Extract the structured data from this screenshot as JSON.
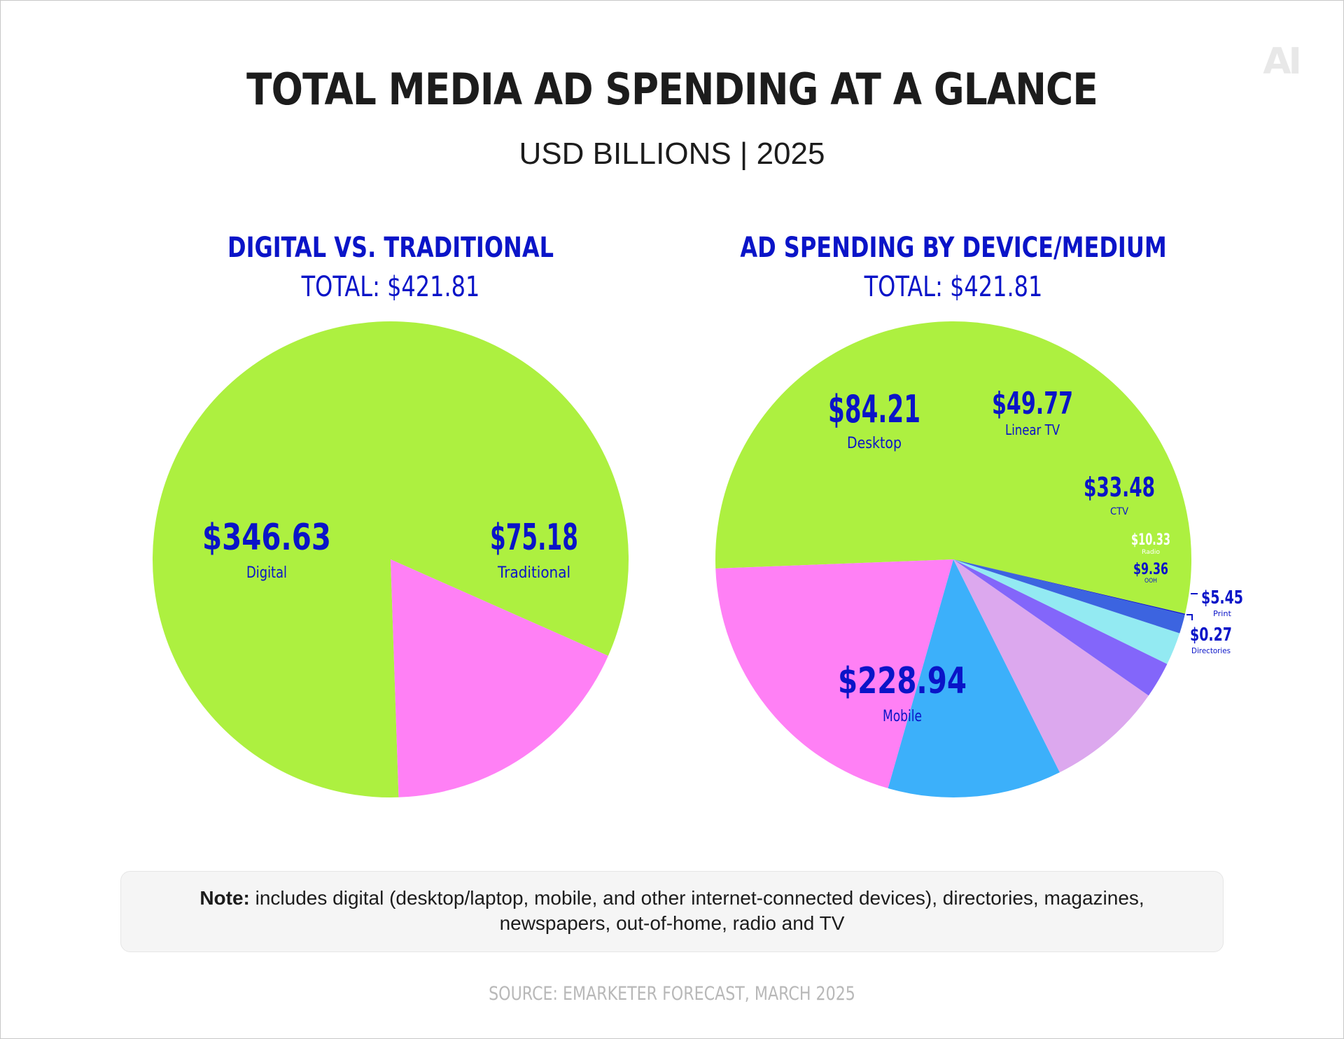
{
  "logo_text": "AI",
  "title": "TOTAL MEDIA AD SPENDING AT A GLANCE",
  "subtitle": "USD BILLIONS  |  2025",
  "colors": {
    "accent": "#0a14c8",
    "digital": "#adf040",
    "traditional": "#ff80f5",
    "mobile": "#adf040",
    "desktop": "#ff80f5",
    "linear_tv": "#3cb0fa",
    "ctv": "#dca8ee",
    "radio": "#8366fa",
    "ooh": "#93eaf2",
    "print": "#3c64e0",
    "directories": "#0a14c8"
  },
  "chart_data": [
    {
      "type": "pie",
      "title": "DIGITAL VS. TRADITIONAL",
      "total_label": "TOTAL: $421.81",
      "slices": [
        {
          "label": "Digital",
          "value": 346.63,
          "value_label": "$346.63"
        },
        {
          "label": "Traditional",
          "value": 75.18,
          "value_label": "$75.18"
        }
      ]
    },
    {
      "type": "pie",
      "title": "AD SPENDING BY DEVICE/MEDIUM",
      "total_label": "TOTAL: $421.81",
      "slices": [
        {
          "label": "Mobile",
          "value": 228.94,
          "value_label": "$228.94"
        },
        {
          "label": "Desktop",
          "value": 84.21,
          "value_label": "$84.21"
        },
        {
          "label": "Linear TV",
          "value": 49.77,
          "value_label": "$49.77"
        },
        {
          "label": "CTV",
          "value": 33.48,
          "value_label": "$33.48"
        },
        {
          "label": "Radio",
          "value": 10.33,
          "value_label": "$10.33"
        },
        {
          "label": "OOH",
          "value": 9.36,
          "value_label": "$9.36"
        },
        {
          "label": "Print",
          "value": 5.45,
          "value_label": "$5.45"
        },
        {
          "label": "Directories",
          "value": 0.27,
          "value_label": "$0.27"
        }
      ]
    }
  ],
  "note": {
    "lead": "Note:",
    "text": " includes digital (desktop/laptop, mobile, and other internet-connected devices), directories, magazines, newspapers, out-of-home, radio and TV"
  },
  "source": "SOURCE: EMARKETER FORECAST, MARCH 2025"
}
